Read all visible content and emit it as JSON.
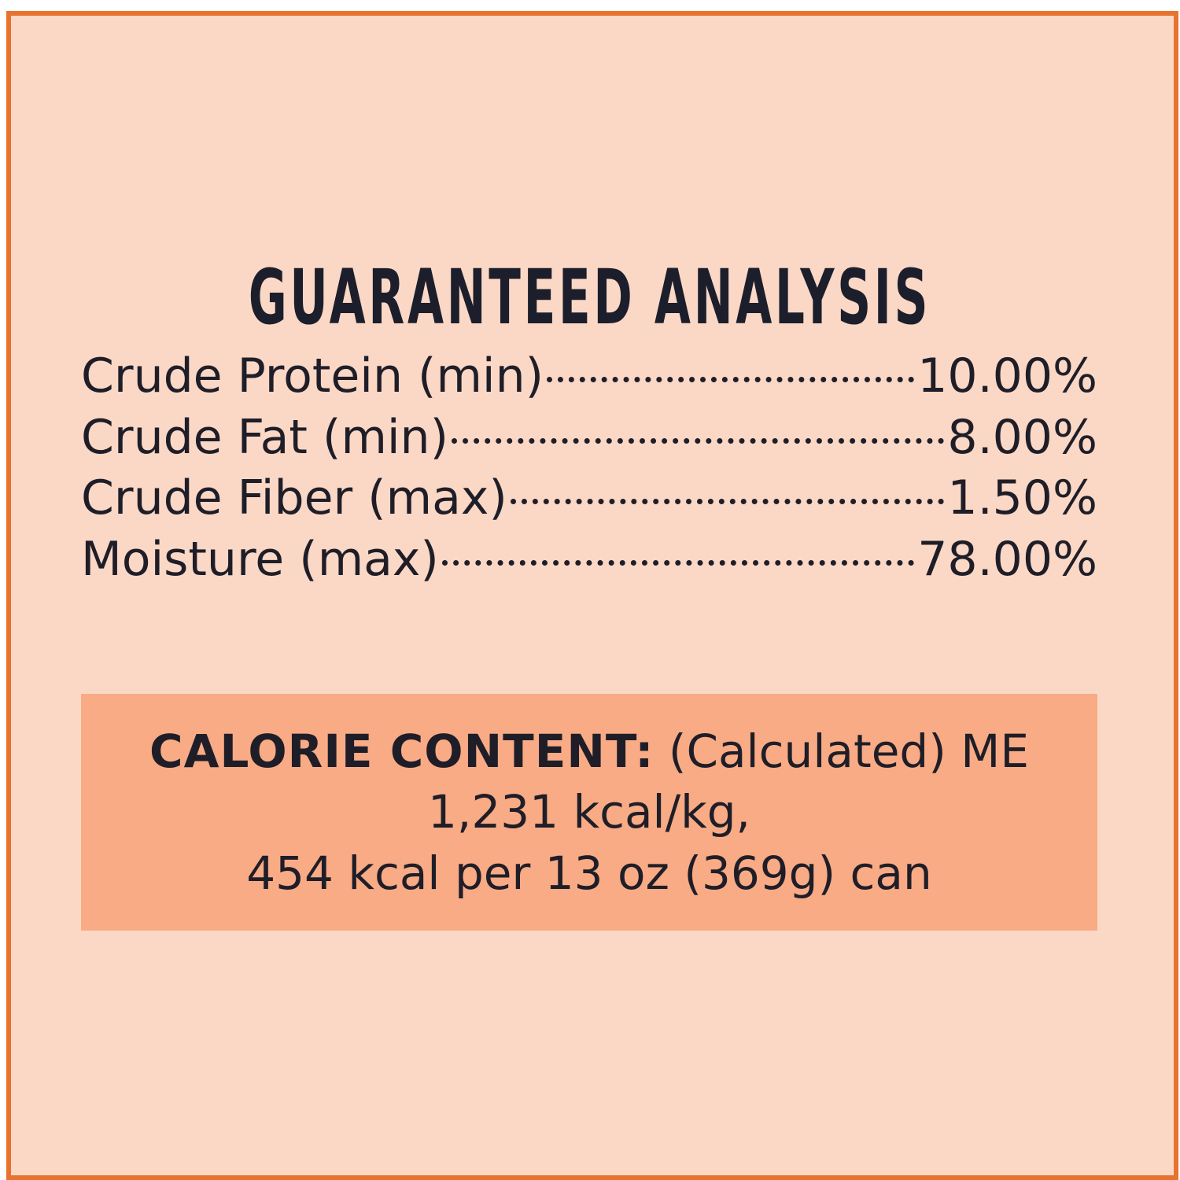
{
  "colors": {
    "background": "#fbd8c6",
    "border": "#e8732f",
    "calorie_box": "#f8ab85",
    "text": "#1f1e28"
  },
  "title": "GUARANTEED ANALYSIS",
  "analysis": [
    {
      "label": "Crude Protein (min)",
      "value": "10.00%"
    },
    {
      "label": "Crude Fat (min)",
      "value": "8.00%"
    },
    {
      "label": "Crude Fiber (max)",
      "value": "1.50%"
    },
    {
      "label": "Moisture (max)",
      "value": "78.00%"
    }
  ],
  "calorie": {
    "heading": "CALORIE CONTENT:",
    "line1_rest": " (Calculated) ME",
    "line2": "1,231 kcal/kg,",
    "line3": "454 kcal per 13 oz (369g) can"
  }
}
